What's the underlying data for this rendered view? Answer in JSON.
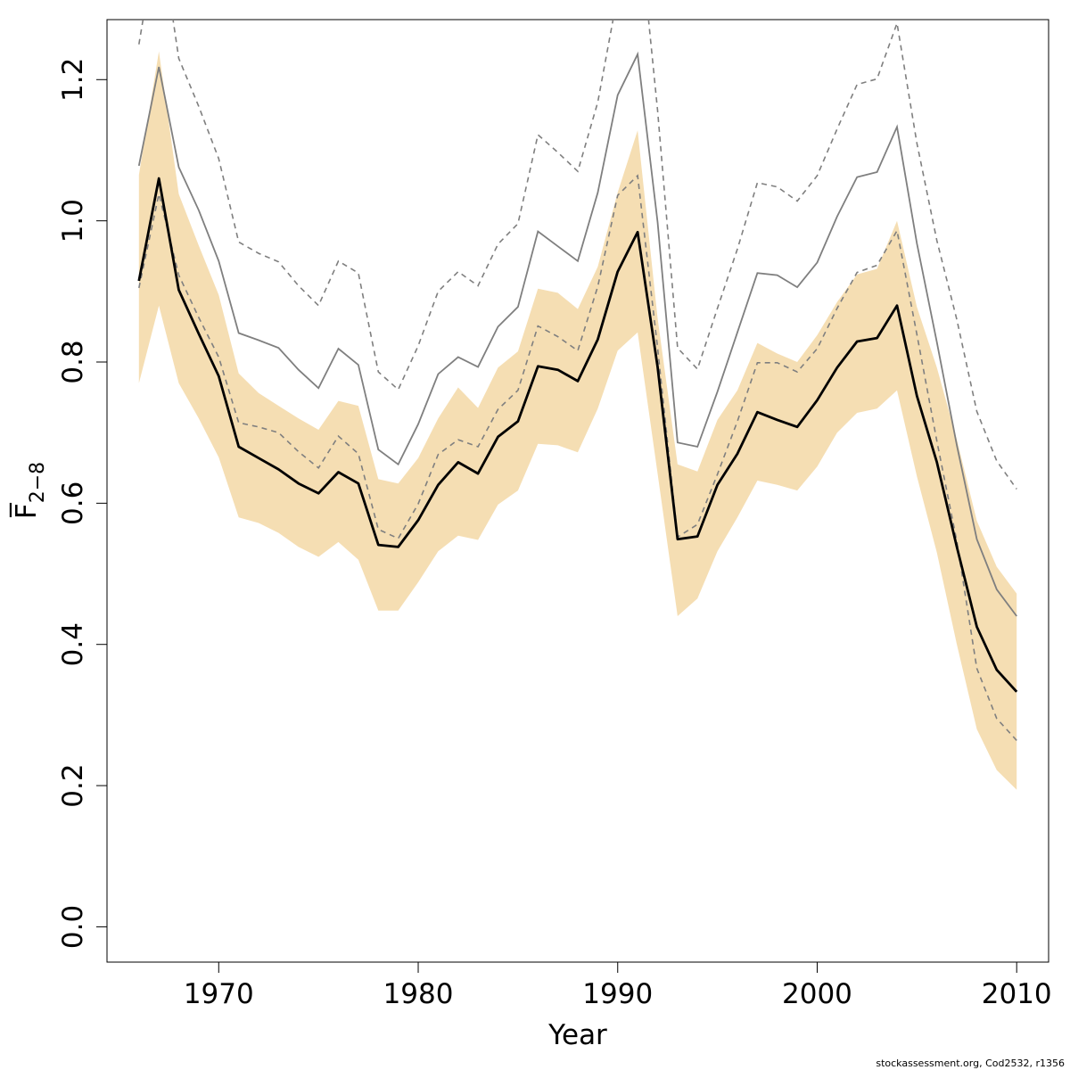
{
  "chart_data": {
    "type": "line",
    "xlabel": "Year",
    "ylabel": "F̅",
    "ylabel_sub": "2−8",
    "credit": "stockassessment.org, Cod2532, r1356",
    "xlim": [
      1964.4,
      2011.6
    ],
    "ylim": [
      -0.05,
      1.285
    ],
    "x_ticks": [
      1970,
      1980,
      1990,
      2000,
      2010
    ],
    "x_tick_labels": [
      "1970",
      "1980",
      "1990",
      "2000",
      "2010"
    ],
    "y_ticks": [
      0.0,
      0.2,
      0.4,
      0.6,
      0.8,
      1.0,
      1.2
    ],
    "y_tick_labels": [
      "0.0",
      "0.2",
      "0.4",
      "0.6",
      "0.8",
      "1.0",
      "1.2"
    ],
    "colors": {
      "band": "#f5deb3",
      "estimate": "#000000",
      "previous": "#7f7f7f",
      "previous_ci": "#7f7f7f",
      "frame": "#000000"
    },
    "x": [
      1966,
      1967,
      1968,
      1969,
      1970,
      1971,
      1972,
      1973,
      1974,
      1975,
      1976,
      1977,
      1978,
      1979,
      1980,
      1981,
      1982,
      1983,
      1984,
      1985,
      1986,
      1987,
      1988,
      1989,
      1990,
      1991,
      1992,
      1993,
      1994,
      1995,
      1996,
      1997,
      1998,
      1999,
      2000,
      2001,
      2002,
      2003,
      2004,
      2005,
      2006,
      2007,
      2008,
      2009,
      2010
    ],
    "series": [
      {
        "role": "band",
        "lower": [
          0.77,
          0.88,
          0.77,
          0.72,
          0.665,
          0.58,
          0.572,
          0.558,
          0.538,
          0.524,
          0.545,
          0.52,
          0.448,
          0.448,
          0.488,
          0.532,
          0.554,
          0.548,
          0.598,
          0.618,
          0.684,
          0.682,
          0.672,
          0.734,
          0.816,
          0.842,
          0.642,
          0.44,
          0.465,
          0.532,
          0.58,
          0.632,
          0.626,
          0.618,
          0.652,
          0.7,
          0.728,
          0.734,
          0.76,
          0.638,
          0.53,
          0.4,
          0.28,
          0.222,
          0.194
        ],
        "upper": [
          1.065,
          1.24,
          1.038,
          0.965,
          0.895,
          0.784,
          0.756,
          0.738,
          0.72,
          0.704,
          0.745,
          0.738,
          0.634,
          0.628,
          0.664,
          0.72,
          0.764,
          0.735,
          0.792,
          0.815,
          0.904,
          0.898,
          0.875,
          0.935,
          1.04,
          1.128,
          0.862,
          0.655,
          0.645,
          0.718,
          0.76,
          0.827,
          0.812,
          0.8,
          0.838,
          0.885,
          0.924,
          0.932,
          1.0,
          0.878,
          0.792,
          0.69,
          0.575,
          0.51,
          0.472
        ]
      },
      {
        "role": "estimate",
        "values": [
          0.915,
          1.06,
          0.902,
          0.84,
          0.78,
          0.68,
          0.664,
          0.648,
          0.628,
          0.614,
          0.644,
          0.628,
          0.541,
          0.538,
          0.576,
          0.626,
          0.658,
          0.642,
          0.694,
          0.716,
          0.794,
          0.789,
          0.773,
          0.832,
          0.928,
          0.984,
          0.793,
          0.549,
          0.553,
          0.626,
          0.67,
          0.729,
          0.718,
          0.708,
          0.746,
          0.792,
          0.829,
          0.834,
          0.88,
          0.752,
          0.658,
          0.538,
          0.425,
          0.364,
          0.333
        ]
      },
      {
        "role": "previous",
        "values": [
          1.078,
          1.218,
          1.076,
          1.015,
          0.943,
          0.841,
          0.831,
          0.82,
          0.789,
          0.763,
          0.819,
          0.796,
          0.676,
          0.655,
          0.712,
          0.783,
          0.807,
          0.793,
          0.85,
          0.878,
          0.985,
          0.964,
          0.943,
          1.04,
          1.178,
          1.236,
          0.998,
          0.686,
          0.68,
          0.758,
          0.842,
          0.926,
          0.923,
          0.906,
          0.941,
          1.006,
          1.062,
          1.069,
          1.133,
          0.968,
          0.828,
          0.682,
          0.549,
          0.478,
          0.44
        ]
      },
      {
        "role": "previous_lower",
        "values": [
          0.905,
          1.038,
          0.923,
          0.863,
          0.807,
          0.714,
          0.708,
          0.7,
          0.673,
          0.65,
          0.695,
          0.67,
          0.563,
          0.55,
          0.599,
          0.669,
          0.69,
          0.68,
          0.733,
          0.76,
          0.851,
          0.836,
          0.816,
          0.907,
          1.036,
          1.064,
          0.82,
          0.552,
          0.57,
          0.641,
          0.716,
          0.799,
          0.799,
          0.786,
          0.819,
          0.876,
          0.927,
          0.937,
          0.986,
          0.839,
          0.688,
          0.546,
          0.366,
          0.295,
          0.264
        ]
      },
      {
        "role": "previous_upper",
        "values": [
          1.25,
          1.42,
          1.23,
          1.162,
          1.088,
          0.97,
          0.954,
          0.942,
          0.908,
          0.88,
          0.943,
          0.926,
          0.786,
          0.761,
          0.823,
          0.9,
          0.928,
          0.908,
          0.967,
          0.996,
          1.122,
          1.097,
          1.07,
          1.168,
          1.32,
          1.44,
          1.156,
          0.82,
          0.79,
          0.876,
          0.96,
          1.054,
          1.048,
          1.028,
          1.064,
          1.13,
          1.193,
          1.201,
          1.28,
          1.11,
          0.972,
          0.86,
          0.73,
          0.66,
          0.62
        ]
      }
    ]
  }
}
